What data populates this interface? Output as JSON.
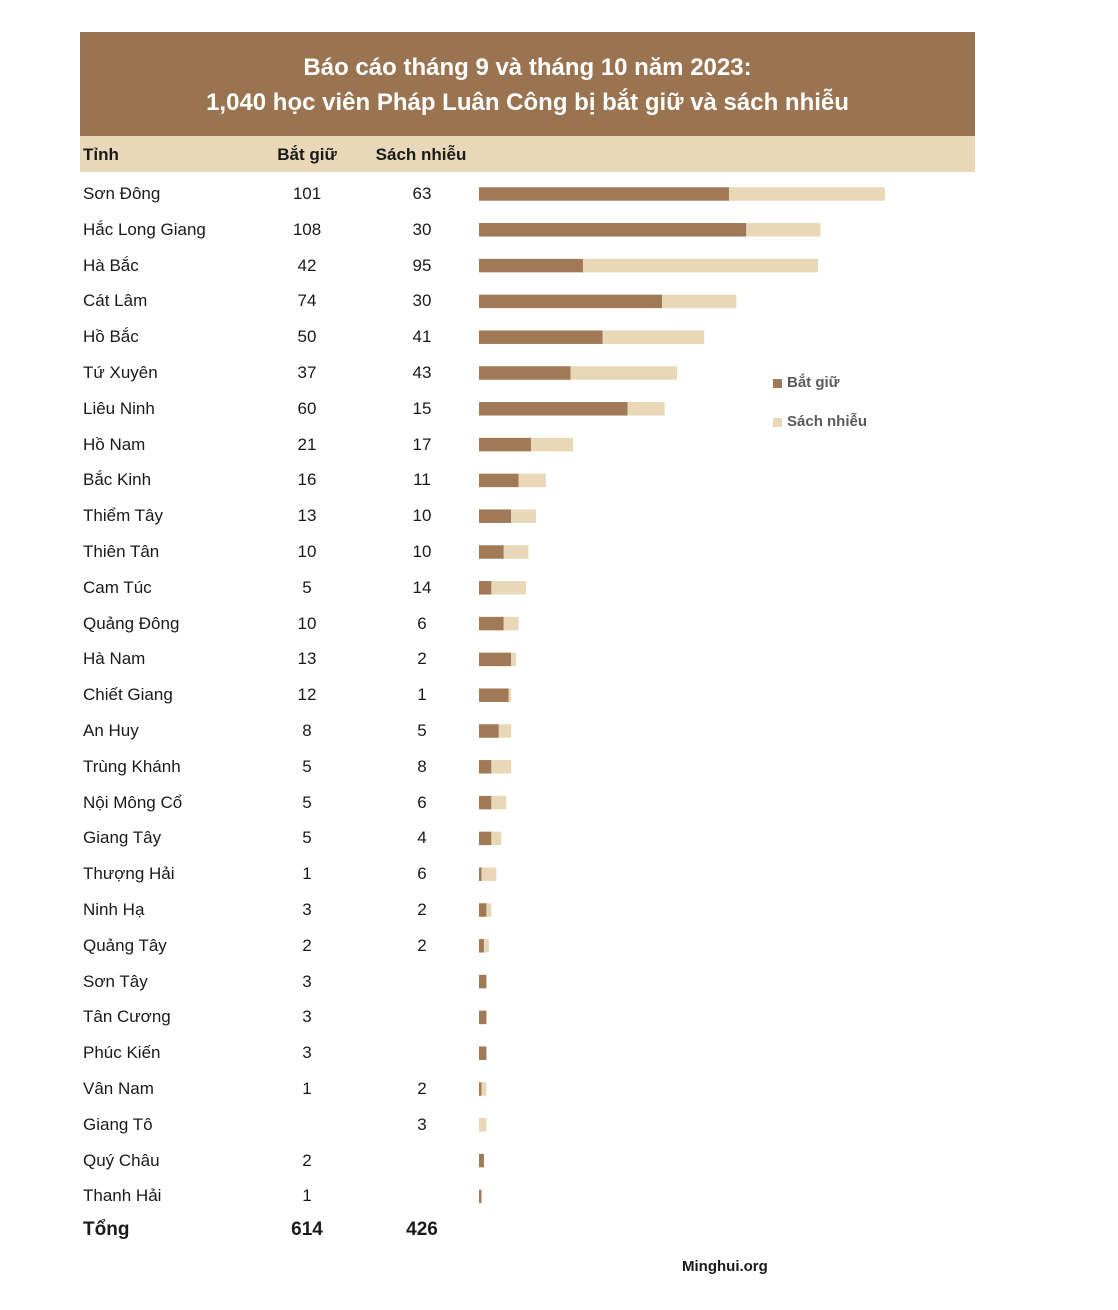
{
  "header": {
    "title_line1": "Báo cáo tháng 9 và tháng 10 năm 2023:",
    "title_line2": "1,040 học viên Pháp Luân Công bị bắt giữ và sách nhiễu"
  },
  "columns": {
    "province": "Tỉnh",
    "arrested": "Bắt giữ",
    "harassed": "Sách nhiễu"
  },
  "rows": [
    {
      "name": "Sơn Đông",
      "arrested": "101",
      "harassed": "63"
    },
    {
      "name": "Hắc Long Giang",
      "arrested": "108",
      "harassed": "30"
    },
    {
      "name": "Hà Bắc",
      "arrested": "42",
      "harassed": "95"
    },
    {
      "name": "Cát Lâm",
      "arrested": "74",
      "harassed": "30"
    },
    {
      "name": "Hồ Bắc",
      "arrested": "50",
      "harassed": "41"
    },
    {
      "name": "Tứ Xuyên",
      "arrested": "37",
      "harassed": "43"
    },
    {
      "name": "Liêu Ninh",
      "arrested": "60",
      "harassed": "15"
    },
    {
      "name": "Hồ Nam",
      "arrested": "21",
      "harassed": "17"
    },
    {
      "name": "Bắc Kinh",
      "arrested": "16",
      "harassed": "11"
    },
    {
      "name": "Thiểm Tây",
      "arrested": "13",
      "harassed": "10"
    },
    {
      "name": "Thiên Tân",
      "arrested": "10",
      "harassed": "10"
    },
    {
      "name": "Cam Túc",
      "arrested": "5",
      "harassed": "14"
    },
    {
      "name": "Quảng Đông",
      "arrested": "10",
      "harassed": "6"
    },
    {
      "name": "Hà Nam",
      "arrested": "13",
      "harassed": "2"
    },
    {
      "name": "Chiết Giang",
      "arrested": "12",
      "harassed": "1"
    },
    {
      "name": "An Huy",
      "arrested": "8",
      "harassed": "5"
    },
    {
      "name": "Trùng Khánh",
      "arrested": "5",
      "harassed": "8"
    },
    {
      "name": "Nội Mông Cổ",
      "arrested": "5",
      "harassed": "6"
    },
    {
      "name": "Giang Tây",
      "arrested": "5",
      "harassed": "4"
    },
    {
      "name": "Thượng Hải",
      "arrested": "1",
      "harassed": "6"
    },
    {
      "name": "Ninh Hạ",
      "arrested": "3",
      "harassed": "2"
    },
    {
      "name": "Quảng Tây",
      "arrested": "2",
      "harassed": "2"
    },
    {
      "name": "Sơn Tây",
      "arrested": "3",
      "harassed": ""
    },
    {
      "name": "Tân Cương",
      "arrested": "3",
      "harassed": ""
    },
    {
      "name": "Phúc Kiến",
      "arrested": "3",
      "harassed": ""
    },
    {
      "name": "Vân Nam",
      "arrested": "1",
      "harassed": "2"
    },
    {
      "name": "Giang Tô",
      "arrested": "",
      "harassed": "3"
    },
    {
      "name": "Quý Châu",
      "arrested": "2",
      "harassed": ""
    },
    {
      "name": "Thanh Hải",
      "arrested": "1",
      "harassed": ""
    }
  ],
  "total": {
    "label": "Tổng",
    "arrested": "614",
    "harassed": "426"
  },
  "legend": {
    "arrested": "Bắt giữ",
    "harassed": "Sách nhiễu"
  },
  "source": "Minghui.org",
  "colors": {
    "title_bg": "#9a7450",
    "header_bg": "#e8d8b8",
    "arrested": "#a07a56",
    "harassed": "#e8d8b8"
  },
  "chart_data": {
    "type": "bar",
    "orientation": "horizontal",
    "stacked": true,
    "title": "Báo cáo tháng 9 và tháng 10 năm 2023: 1,040 học viên Pháp Luân Công bị bắt giữ và sách nhiễu",
    "categories": [
      "Sơn Đông",
      "Hắc Long Giang",
      "Hà Bắc",
      "Cát Lâm",
      "Hồ Bắc",
      "Tứ Xuyên",
      "Liêu Ninh",
      "Hồ Nam",
      "Bắc Kinh",
      "Thiểm Tây",
      "Thiên Tân",
      "Cam Túc",
      "Quảng Đông",
      "Hà Nam",
      "Chiết Giang",
      "An Huy",
      "Trùng Khánh",
      "Nội Mông Cổ",
      "Giang Tây",
      "Thượng Hải",
      "Ninh Hạ",
      "Quảng Tây",
      "Sơn Tây",
      "Tân Cương",
      "Phúc Kiến",
      "Vân Nam",
      "Giang Tô",
      "Quý Châu",
      "Thanh Hải"
    ],
    "series": [
      {
        "name": "Bắt giữ",
        "values": [
          101,
          108,
          42,
          74,
          50,
          37,
          60,
          21,
          16,
          13,
          10,
          5,
          10,
          13,
          12,
          8,
          5,
          5,
          5,
          1,
          3,
          2,
          3,
          3,
          3,
          1,
          0,
          2,
          1
        ]
      },
      {
        "name": "Sách nhiễu",
        "values": [
          63,
          30,
          95,
          30,
          41,
          43,
          15,
          17,
          11,
          10,
          10,
          14,
          6,
          2,
          1,
          5,
          8,
          6,
          4,
          6,
          2,
          2,
          0,
          0,
          0,
          2,
          3,
          0,
          0
        ]
      }
    ],
    "xlim": [
      0,
      200
    ],
    "grid": false,
    "legend": "right"
  }
}
